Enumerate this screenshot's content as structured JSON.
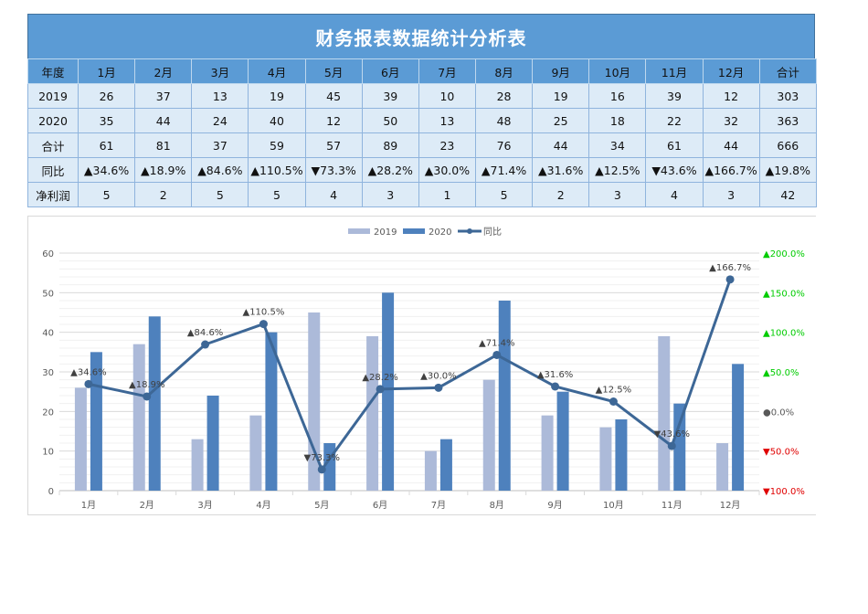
{
  "report": {
    "title": "财务报表数据统计分析表",
    "header": [
      "年度",
      "1月",
      "2月",
      "3月",
      "4月",
      "5月",
      "6月",
      "7月",
      "8月",
      "9月",
      "10月",
      "11月",
      "12月",
      "合计"
    ],
    "rows": [
      {
        "label": "2019",
        "cells": [
          "26",
          "37",
          "13",
          "19",
          "45",
          "39",
          "10",
          "28",
          "19",
          "16",
          "39",
          "12",
          "303"
        ]
      },
      {
        "label": "2020",
        "cells": [
          "35",
          "44",
          "24",
          "40",
          "12",
          "50",
          "13",
          "48",
          "25",
          "18",
          "22",
          "32",
          "363"
        ]
      },
      {
        "label": "合计",
        "cells": [
          "61",
          "81",
          "37",
          "59",
          "57",
          "89",
          "23",
          "76",
          "44",
          "34",
          "61",
          "44",
          "666"
        ]
      },
      {
        "label": "同比",
        "cells": [
          "▲34.6%",
          "▲18.9%",
          "▲84.6%",
          "▲110.5%",
          "▼73.3%",
          "▲28.2%",
          "▲30.0%",
          "▲71.4%",
          "▲31.6%",
          "▲12.5%",
          "▼43.6%",
          "▲166.7%",
          "▲19.8%"
        ]
      },
      {
        "label": "净利润",
        "cells": [
          "5",
          "2",
          "5",
          "5",
          "4",
          "3",
          "1",
          "5",
          "2",
          "3",
          "4",
          "3",
          "42"
        ]
      }
    ]
  },
  "colors": {
    "title_bg": "#5b9bd5",
    "cell_bg": "#ddebf7",
    "series_2019": "#acbad9",
    "series_2020": "#4e81bd",
    "yoy_line": "#3d6796",
    "positive": "#00cc00",
    "negative": "#e00000"
  },
  "chart_data": {
    "type": "bar",
    "title": "",
    "categories": [
      "1月",
      "2月",
      "3月",
      "4月",
      "5月",
      "6月",
      "7月",
      "8月",
      "9月",
      "10月",
      "11月",
      "12月"
    ],
    "series": [
      {
        "name": "2019",
        "type": "bar",
        "values": [
          26,
          37,
          13,
          19,
          45,
          39,
          10,
          28,
          19,
          16,
          39,
          12
        ]
      },
      {
        "name": "2020",
        "type": "bar",
        "values": [
          35,
          44,
          24,
          40,
          12,
          50,
          13,
          48,
          25,
          18,
          22,
          32
        ]
      },
      {
        "name": "同比",
        "type": "line",
        "axis": "secondary",
        "values": [
          34.6,
          18.9,
          84.6,
          110.5,
          -73.3,
          28.2,
          30.0,
          71.4,
          31.6,
          12.5,
          -43.6,
          166.7
        ],
        "labels": [
          "▲34.6%",
          "▲18.9%",
          "▲84.6%",
          "▲110.5%",
          "▼73.3%",
          "▲28.2%",
          "▲30.0%",
          "▲71.4%",
          "▲31.6%",
          "▲12.5%",
          "▼43.6%",
          "▲166.7%"
        ]
      }
    ],
    "legend": [
      "2019",
      "2020",
      "同比"
    ],
    "legend_position": "top",
    "xlabel": "",
    "ylabel": "",
    "ylim": [
      0,
      60
    ],
    "y_ticks": [
      "0",
      "10",
      "20",
      "30",
      "40",
      "50",
      "60"
    ],
    "y2lim": [
      -100,
      200
    ],
    "y2_ticks": [
      "▲200.0%",
      "▲150.0%",
      "▲100.0%",
      "▲50.0%",
      "●0.0%",
      "▼50.0%",
      "▼100.0%"
    ],
    "grid": true
  }
}
